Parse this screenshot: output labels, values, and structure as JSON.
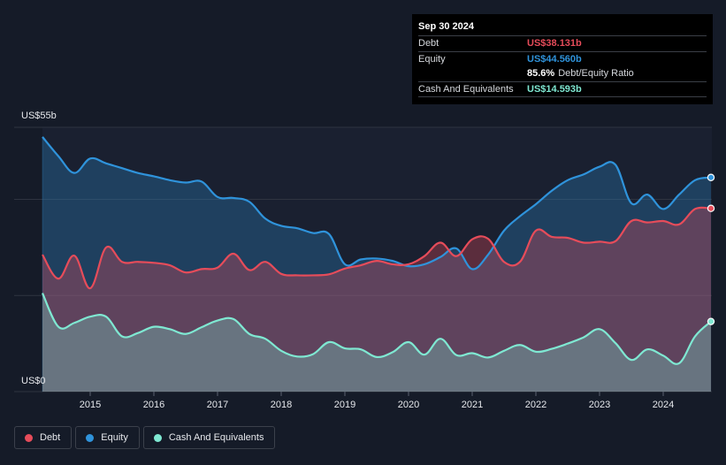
{
  "tooltip": {
    "date": "Sep 30 2024",
    "debt_label": "Debt",
    "debt_value": "US$38.131b",
    "equity_label": "Equity",
    "equity_value": "US$44.560b",
    "ratio_value": "85.6%",
    "ratio_label": "Debt/Equity Ratio",
    "cash_label": "Cash And Equivalents",
    "cash_value": "US$14.593b"
  },
  "colors": {
    "debt": "#e64c5a",
    "equity": "#2f93db",
    "cash": "#7fe8d2",
    "background": "#151b28",
    "grid": "#2f3441"
  },
  "legend": [
    {
      "name": "Debt",
      "color": "#e64c5a"
    },
    {
      "name": "Equity",
      "color": "#2f93db"
    },
    {
      "name": "Cash And Equivalents",
      "color": "#7fe8d2"
    }
  ],
  "chart_data": {
    "type": "area",
    "title": "",
    "xlabel": "",
    "ylabel": "",
    "y_axis_labels": {
      "top": "US$55b",
      "bottom": "US$0"
    },
    "ylim": [
      0,
      55
    ],
    "xlim": [
      2014.25,
      2024.75
    ],
    "x_ticks": [
      2015,
      2016,
      2017,
      2018,
      2019,
      2020,
      2021,
      2022,
      2023,
      2024
    ],
    "x_tick_labels": [
      "2015",
      "2016",
      "2017",
      "2018",
      "2019",
      "2020",
      "2021",
      "2022",
      "2023",
      "2024"
    ],
    "grid": true,
    "legend_position": "bottom-left",
    "series": [
      {
        "name": "Equity",
        "color": "#2f93db",
        "x": [
          2014.25,
          2014.5,
          2014.75,
          2015.0,
          2015.25,
          2015.5,
          2015.75,
          2016.0,
          2016.25,
          2016.5,
          2016.75,
          2017.0,
          2017.25,
          2017.5,
          2017.75,
          2018.0,
          2018.25,
          2018.5,
          2018.75,
          2019.0,
          2019.25,
          2019.5,
          2019.75,
          2020.0,
          2020.25,
          2020.5,
          2020.75,
          2021.0,
          2021.25,
          2021.5,
          2021.75,
          2022.0,
          2022.25,
          2022.5,
          2022.75,
          2023.0,
          2023.25,
          2023.5,
          2023.75,
          2024.0,
          2024.25,
          2024.5,
          2024.75
        ],
        "values": [
          53,
          49,
          45.5,
          48.5,
          47.5,
          46.5,
          45.5,
          44.8,
          44.0,
          43.5,
          43.7,
          40.5,
          40.3,
          39.5,
          36,
          34.5,
          34.0,
          33.0,
          32.8,
          26.5,
          27.5,
          27.7,
          27.2,
          26.1,
          26.5,
          28,
          29.8,
          25.5,
          28.5,
          33.5,
          36.5,
          39,
          41.8,
          44,
          45.2,
          46.8,
          47.2,
          39.2,
          41,
          38,
          41,
          44,
          44.56
        ]
      },
      {
        "name": "Debt",
        "color": "#e64c5a",
        "x": [
          2014.25,
          2014.5,
          2014.75,
          2015.0,
          2015.25,
          2015.5,
          2015.75,
          2016.0,
          2016.25,
          2016.5,
          2016.75,
          2017.0,
          2017.25,
          2017.5,
          2017.75,
          2018.0,
          2018.25,
          2018.5,
          2018.75,
          2019.0,
          2019.25,
          2019.5,
          2019.75,
          2020.0,
          2020.25,
          2020.5,
          2020.75,
          2021.0,
          2021.25,
          2021.5,
          2021.75,
          2022.0,
          2022.25,
          2022.5,
          2022.75,
          2023.0,
          2023.25,
          2023.5,
          2023.75,
          2024.0,
          2024.25,
          2024.5,
          2024.75
        ],
        "values": [
          28.5,
          23.5,
          28.3,
          21.5,
          30,
          27,
          27,
          26.8,
          26.3,
          24.8,
          25.5,
          25.8,
          28.7,
          25.3,
          27,
          24.5,
          24.2,
          24.2,
          24.4,
          25.6,
          26.3,
          27.2,
          26.5,
          26.5,
          28.2,
          31,
          28.2,
          31.7,
          31.8,
          27,
          27,
          33.5,
          32.2,
          32.0,
          31.0,
          31.2,
          31.3,
          35.5,
          35.2,
          35.5,
          34.8,
          38,
          38.131
        ]
      },
      {
        "name": "Cash And Equivalents",
        "color": "#7fe8d2",
        "x": [
          2014.25,
          2014.5,
          2014.75,
          2015.0,
          2015.25,
          2015.5,
          2015.75,
          2016.0,
          2016.25,
          2016.5,
          2016.75,
          2017.0,
          2017.25,
          2017.5,
          2017.75,
          2018.0,
          2018.25,
          2018.5,
          2018.75,
          2019.0,
          2019.25,
          2019.5,
          2019.75,
          2020.0,
          2020.25,
          2020.5,
          2020.75,
          2021.0,
          2021.25,
          2021.5,
          2021.75,
          2022.0,
          2022.25,
          2022.5,
          2022.75,
          2023.0,
          2023.25,
          2023.5,
          2023.75,
          2024.0,
          2024.25,
          2024.5,
          2024.75
        ],
        "values": [
          20.5,
          13.5,
          14.3,
          15.6,
          15.6,
          11.5,
          12.2,
          13.5,
          13,
          12,
          13.4,
          14.8,
          15.1,
          12,
          11,
          8.5,
          7.3,
          7.8,
          10.3,
          9,
          8.8,
          7.2,
          8.2,
          10.3,
          7.7,
          11,
          7.6,
          8.0,
          7.1,
          8.5,
          9.7,
          8.3,
          8.9,
          10,
          11.3,
          13,
          10.1,
          6.6,
          8.8,
          7.5,
          5.9,
          11.5,
          14.593
        ]
      }
    ]
  }
}
